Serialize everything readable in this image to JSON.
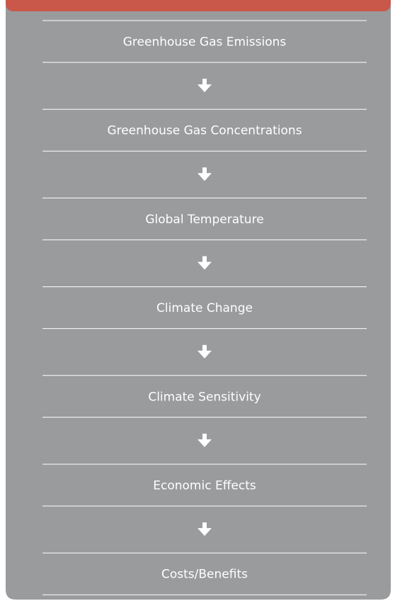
{
  "nodes": [
    {
      "label": "Greenhouse Gas Emissions"
    },
    {
      "label": "Greenhouse Gas Concentrations"
    },
    {
      "label": "Global Temperature"
    },
    {
      "label": "Climate Change"
    },
    {
      "label": "Climate Sensitivity"
    },
    {
      "label": "Economic Effects"
    },
    {
      "label": "Costs/Benefits"
    }
  ]
}
